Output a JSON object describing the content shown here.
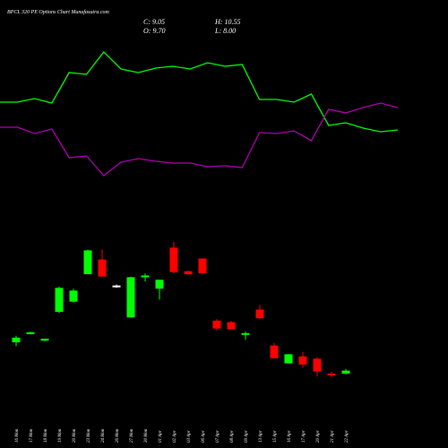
{
  "header": {
    "title": "BPCL 320 PE Options Chart Munafasutra.com"
  },
  "ohlc": {
    "close_label": "C: 9.05",
    "high_label": "H: 10.55",
    "open_label": "O: 9.70",
    "low_label": "L: 8.00"
  },
  "colors": {
    "background": "#000000",
    "up": "#00ff00",
    "down": "#ff0000",
    "neutral": "#ffffff",
    "upper_line": "#00ff00",
    "lower_line": "#b000b0",
    "text": "#ffffff"
  },
  "chart_data": {
    "type": "candlestick",
    "title": "BPCL 320 PE Options Chart Munafasutra.com",
    "categories": [
      "16 Mon",
      "17 Mon",
      "18 Mon",
      "19 Mon",
      "20 Mon",
      "23 Mon",
      "24 Mon",
      "26 Mon",
      "27 Mon",
      "30 Mon",
      "01 Apr",
      "02 Apr",
      "03 Apr",
      "06 Apr",
      "07 Apr",
      "08 Apr",
      "09 Apr",
      "13 Apr",
      "15 Apr",
      "16 Apr",
      "17 Apr",
      "20 Apr",
      "21 Apr",
      "22 Apr"
    ],
    "candles": [
      {
        "open": 24.4,
        "high": 27.5,
        "low": 22.6,
        "close": 26.6
      },
      {
        "open": 28.8,
        "high": 29.4,
        "low": 28.1,
        "close": 29.1
      },
      {
        "open": 25.2,
        "high": 26.2,
        "low": 24.9,
        "close": 26.1
      },
      {
        "open": 38.7,
        "high": 50.6,
        "low": 38.1,
        "close": 50.0
      },
      {
        "open": 43.5,
        "high": 49.6,
        "low": 43.1,
        "close": 48.7
      },
      {
        "open": 56.4,
        "high": 68.0,
        "low": 56.4,
        "close": 67.6
      },
      {
        "open": 63.3,
        "high": 68.0,
        "low": 55.2,
        "close": 55.3
      },
      {
        "open": 51.1,
        "high": 51.6,
        "low": 50.0,
        "close": 51.1
      },
      {
        "open": 36.1,
        "high": 55.2,
        "low": 36.0,
        "close": 55.0
      },
      {
        "open": 55.3,
        "high": 56.8,
        "low": 53.0,
        "close": 55.8
      },
      {
        "open": 49.6,
        "high": 53.8,
        "low": 44.5,
        "close": 53.8
      },
      {
        "open": 68.9,
        "high": 71.7,
        "low": 56.9,
        "close": 57.4
      },
      {
        "open": 57.8,
        "high": 58.2,
        "low": 56.1,
        "close": 56.4
      },
      {
        "open": 63.8,
        "high": 63.8,
        "low": 56.8,
        "close": 56.8
      },
      {
        "open": 34.6,
        "high": 35.3,
        "low": 29.9,
        "close": 30.9
      },
      {
        "open": 33.9,
        "high": 34.4,
        "low": 30.4,
        "close": 30.5
      },
      {
        "open": 28.1,
        "high": 29.5,
        "low": 25.6,
        "close": 28.7
      },
      {
        "open": 39.8,
        "high": 42.0,
        "low": 35.4,
        "close": 35.7
      },
      {
        "open": 22.9,
        "high": 24.1,
        "low": 16.8,
        "close": 16.9
      },
      {
        "open": 14.5,
        "high": 18.9,
        "low": 14.5,
        "close": 18.8
      },
      {
        "open": 17.8,
        "high": 19.9,
        "low": 12.5,
        "close": 14.0
      },
      {
        "open": 16.7,
        "high": 17.4,
        "low": 8.3,
        "close": 10.7
      },
      {
        "open": 9.7,
        "high": 10.6,
        "low": 8.0,
        "close": 9.1
      },
      {
        "open": 9.7,
        "high": 11.9,
        "low": 9.4,
        "close": 11.1
      }
    ],
    "upper_band": [
      126,
      126,
      130,
      125,
      159,
      157,
      182,
      163,
      159,
      164,
      166,
      163,
      170,
      166,
      168,
      129,
      129,
      126,
      135,
      100,
      103,
      97,
      93,
      95
    ],
    "lower_band": [
      98,
      98,
      91,
      96,
      64,
      66,
      44,
      59,
      63,
      60,
      58,
      58,
      54,
      55,
      53,
      92,
      91,
      94,
      83,
      118,
      114,
      120,
      125,
      120
    ],
    "band_ylim": [
      0,
      200
    ],
    "ylim": [
      0,
      80
    ],
    "legend": "none",
    "grid": false
  }
}
